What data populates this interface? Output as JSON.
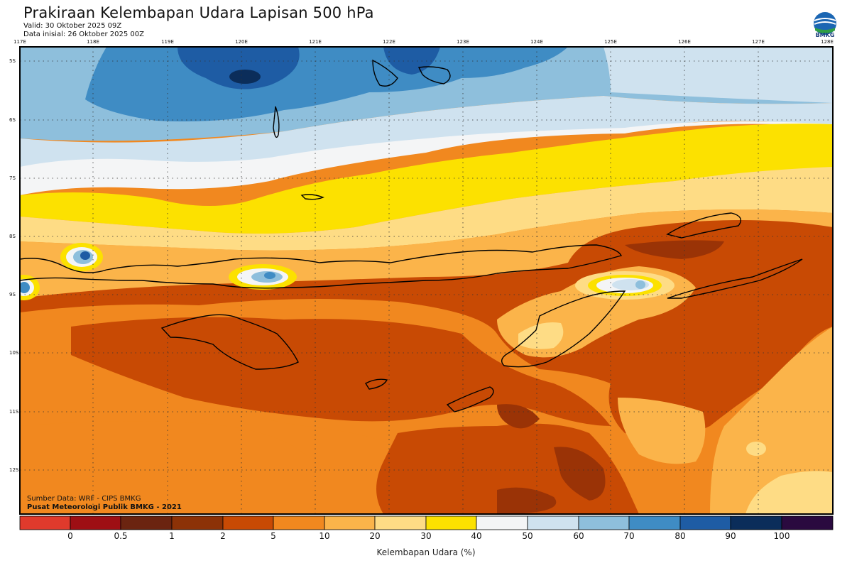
{
  "header": {
    "title": "Prakiraan Kelembapan Udara Lapisan 500 hPa",
    "valid": "Valid: 30 Oktober 2025 09Z",
    "init": "Data inisial: 26 Oktober 2025 00Z"
  },
  "logo": {
    "text": "BMKG"
  },
  "map": {
    "lon_labels": [
      "117E",
      "118E",
      "119E",
      "120E",
      "121E",
      "122E",
      "123E",
      "124E",
      "125E",
      "126E",
      "127E",
      "128E"
    ],
    "lat_labels": [
      "5S",
      "6S",
      "7S",
      "8S",
      "9S",
      "10S",
      "11S",
      "12S"
    ]
  },
  "credits": {
    "source": "Sumber Data: WRF - CIPS BMKG",
    "org": "Pusat Meteorologi Publik BMKG - 2021"
  },
  "colorbar": {
    "label": "Kelembapan Udara (%)",
    "ticks": [
      "0",
      "0.5",
      "1",
      "2",
      "5",
      "10",
      "20",
      "30",
      "40",
      "50",
      "60",
      "70",
      "80",
      "90",
      "100"
    ],
    "colors": [
      "#e03a2c",
      "#9e0f14",
      "#6b2410",
      "#8c3207",
      "#c84a04",
      "#f1881f",
      "#fbb44a",
      "#fedc85",
      "#fce100",
      "#f4f5f6",
      "#cfe2ef",
      "#8ebfdc",
      "#3f8cc4",
      "#1e5ca4",
      "#0b2d5a",
      "#2a0a3f"
    ]
  }
}
